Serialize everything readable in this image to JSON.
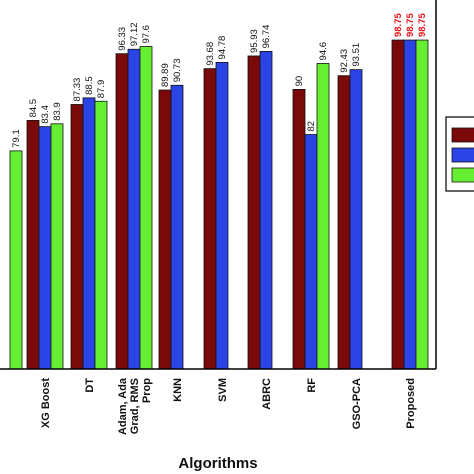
{
  "chart_data": {
    "type": "bar",
    "xlabel": "Algorithms",
    "ylabel": "",
    "ylim": [
      0,
      100
    ],
    "highlight_category": "Proposed",
    "highlight_label_color": "#e8141c",
    "categories": [
      "",
      "XG Boost",
      "DT",
      "Adam, Ada Grad, RMS Prop",
      "KNN",
      "SVM",
      "ABRC",
      "RF",
      "GSO-PCA",
      "Proposed"
    ],
    "category_label_lines": [
      [
        ""
      ],
      [
        "XG Boost"
      ],
      [
        "DT"
      ],
      [
        "Adam, Ada",
        "Grad, RMS",
        "Prop"
      ],
      [
        "KNN"
      ],
      [
        "SVM"
      ],
      [
        "ABRC"
      ],
      [
        "RF"
      ],
      [
        "GSO-PCA"
      ],
      [
        "Proposed"
      ]
    ],
    "series": [
      {
        "color": "#7a0a0a",
        "values": [
          null,
          84.5,
          87.33,
          96.33,
          89.89,
          93.68,
          95.93,
          90,
          92.43,
          98.75
        ],
        "labels": [
          "",
          "84.5",
          "87.33",
          "96.33",
          "89.89",
          "93.68",
          "95.93",
          "90",
          "92.43",
          "98.75"
        ]
      },
      {
        "color": "#2b44e6",
        "values": [
          null,
          83.4,
          88.5,
          97.12,
          90.73,
          94.78,
          96.74,
          82,
          93.51,
          98.75
        ],
        "labels": [
          "",
          "83.4",
          "88.5",
          "97.12",
          "90.73",
          "94.78",
          "96.74",
          "82",
          "93.51",
          "98.75"
        ]
      },
      {
        "color": "#66ee33",
        "values": [
          79.1,
          83.9,
          87.9,
          97.6,
          null,
          null,
          null,
          94.6,
          null,
          98.75
        ],
        "labels": [
          "79.1",
          "83.9",
          "87.9",
          "97.6",
          "",
          "",
          "",
          "94.6",
          "",
          "98.75"
        ]
      }
    ],
    "legend_position": "right",
    "grid": false
  }
}
